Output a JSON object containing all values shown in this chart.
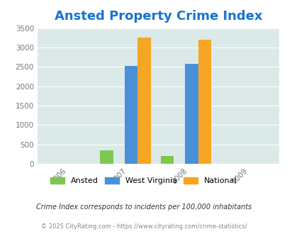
{
  "title": "Ansted Property Crime Index",
  "title_color": "#1874cd",
  "title_fontsize": 13,
  "years": [
    2006,
    2007,
    2008,
    2009
  ],
  "data_years": [
    2007,
    2008
  ],
  "ansted": [
    340,
    200
  ],
  "west_virginia": [
    2530,
    2570
  ],
  "national": [
    3260,
    3200
  ],
  "ansted_color": "#7ec850",
  "wv_color": "#4a90d9",
  "national_color": "#f5a623",
  "ylim": [
    0,
    3500
  ],
  "yticks": [
    0,
    500,
    1000,
    1500,
    2000,
    2500,
    3000,
    3500
  ],
  "bar_width": 0.22,
  "bg_color": "#dce9e9",
  "legend_labels": [
    "Ansted",
    "West Virginia",
    "National"
  ],
  "footnote1": "Crime Index corresponds to incidents per 100,000 inhabitants",
  "footnote2": "© 2025 CityRating.com - https://www.cityrating.com/crime-statistics/",
  "footnote1_color": "#333333",
  "footnote2_color": "#888888"
}
